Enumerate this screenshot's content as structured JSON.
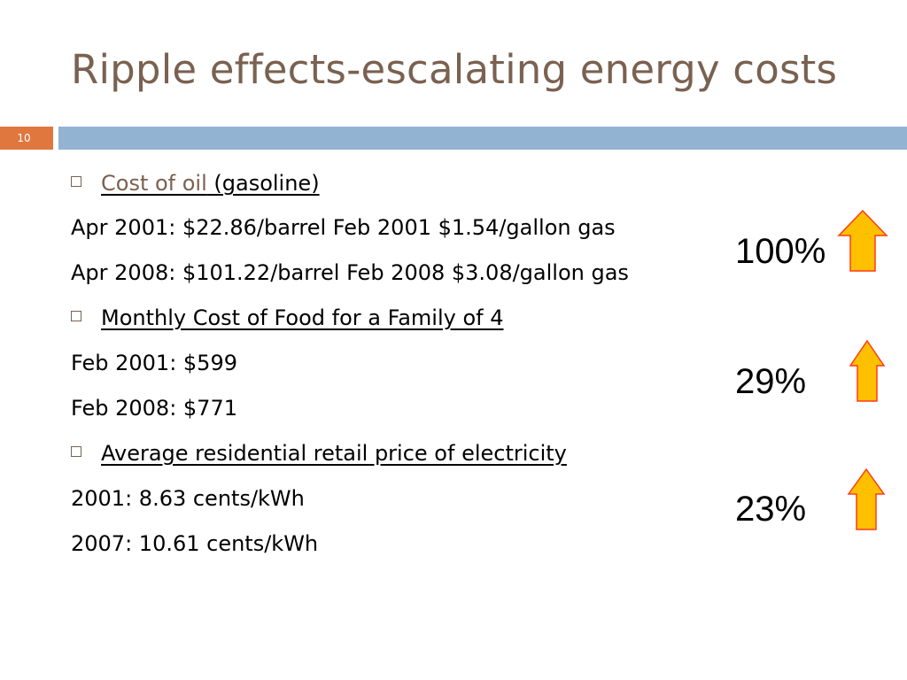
{
  "slide": {
    "title": "Ripple effects-escalating energy costs",
    "number": "10",
    "colors": {
      "title": "#7a6150",
      "slide_number_box": "#e0773e",
      "header_bar": "#92b3d2",
      "arrow_fill": "#ffc000",
      "arrow_outline": "#ff3b1a"
    }
  },
  "content": {
    "oil": {
      "heading_link": "Cost of oil",
      "heading_rest": " (gasoline)",
      "line1": "Apr 2001: $22.86/barrel   Feb 2001 $1.54/gallon gas",
      "line2": "Apr 2008: $101.22/barrel   Feb 2008 $3.08/gallon gas",
      "increase": "100%",
      "icon": "up-arrow-icon"
    },
    "food": {
      "heading": "Monthly Cost of Food for a Family of 4",
      "line1": "Feb 2001: $599",
      "line2": "Feb 2008: $771",
      "increase": "29%",
      "icon": "up-arrow-icon"
    },
    "electricity": {
      "heading": "Average residential retail price of electricity",
      "line1": "2001: 8.63 cents/kWh",
      "line2": "2007: 10.61 cents/kWh",
      "increase": "23%",
      "icon": "up-arrow-icon"
    }
  }
}
